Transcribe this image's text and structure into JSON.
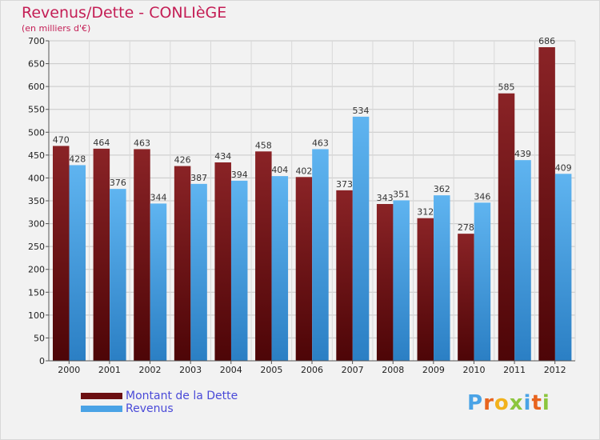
{
  "title": "Revenus/Dette - CONLIèGE",
  "subtitle": "(en milliers d'€)",
  "brand": "Proxiti",
  "colors": {
    "dette": "#6b0f12",
    "revenus": "#4aa3e6",
    "title": "#c41e55",
    "legend_text": "#4a4ad8"
  },
  "legend": [
    {
      "label": "Montant de la Dette",
      "color": "#6b0f12"
    },
    {
      "label": "Revenus",
      "color": "#4aa3e6"
    }
  ],
  "chart_data": {
    "type": "bar",
    "categories": [
      "2000",
      "2001",
      "2002",
      "2003",
      "2004",
      "2005",
      "2006",
      "2007",
      "2008",
      "2009",
      "2010",
      "2011",
      "2012"
    ],
    "series": [
      {
        "name": "Montant de la Dette",
        "values": [
          470,
          464,
          463,
          426,
          434,
          458,
          402,
          373,
          343,
          312,
          278,
          585,
          686
        ]
      },
      {
        "name": "Revenus",
        "values": [
          428,
          376,
          344,
          387,
          394,
          404,
          463,
          534,
          351,
          362,
          346,
          439,
          409
        ]
      }
    ],
    "ylim": [
      0,
      700
    ],
    "yticks": [
      0,
      50,
      100,
      150,
      200,
      250,
      300,
      350,
      400,
      450,
      500,
      550,
      600,
      650,
      700
    ],
    "grid": true,
    "legend_position": "bottom-left"
  }
}
